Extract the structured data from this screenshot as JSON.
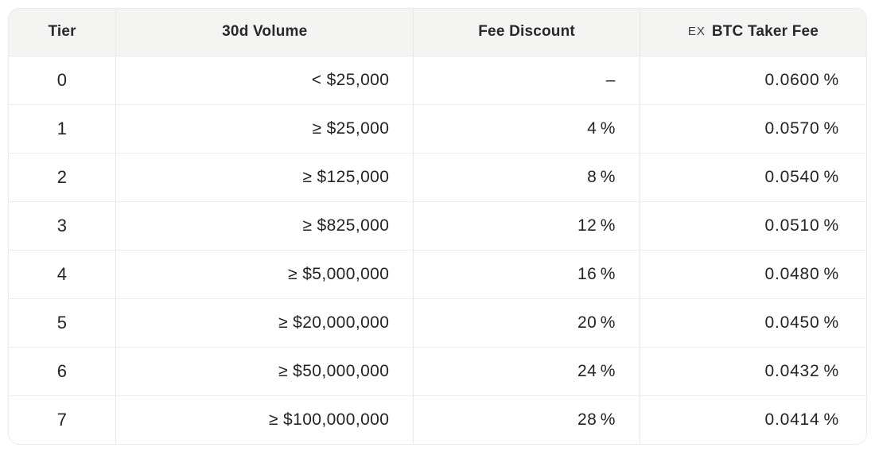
{
  "colors": {
    "header_bg": "#f4f4f2",
    "border": "#e9e9e7",
    "text": "#212428"
  },
  "table": {
    "columns": [
      {
        "label": "Tier"
      },
      {
        "label": "30d Volume"
      },
      {
        "label": "Fee Discount"
      },
      {
        "label": "BTC Taker Fee",
        "prefix": "EX"
      }
    ],
    "rows": [
      {
        "tier": "0",
        "volume": "< $25,000",
        "discount": "–",
        "taker_fee": "0.0600 %"
      },
      {
        "tier": "1",
        "volume": "≥ $25,000",
        "discount": "4 %",
        "taker_fee": "0.0570 %"
      },
      {
        "tier": "2",
        "volume": "≥ $125,000",
        "discount": "8 %",
        "taker_fee": "0.0540 %"
      },
      {
        "tier": "3",
        "volume": "≥ $825,000",
        "discount": "12 %",
        "taker_fee": "0.0510 %"
      },
      {
        "tier": "4",
        "volume": "≥ $5,000,000",
        "discount": "16 %",
        "taker_fee": "0.0480 %"
      },
      {
        "tier": "5",
        "volume": "≥ $20,000,000",
        "discount": "20 %",
        "taker_fee": "0.0450 %"
      },
      {
        "tier": "6",
        "volume": "≥ $50,000,000",
        "discount": "24 %",
        "taker_fee": "0.0432 %"
      },
      {
        "tier": "7",
        "volume": "≥ $100,000,000",
        "discount": "28 %",
        "taker_fee": "0.0414 %"
      }
    ]
  }
}
